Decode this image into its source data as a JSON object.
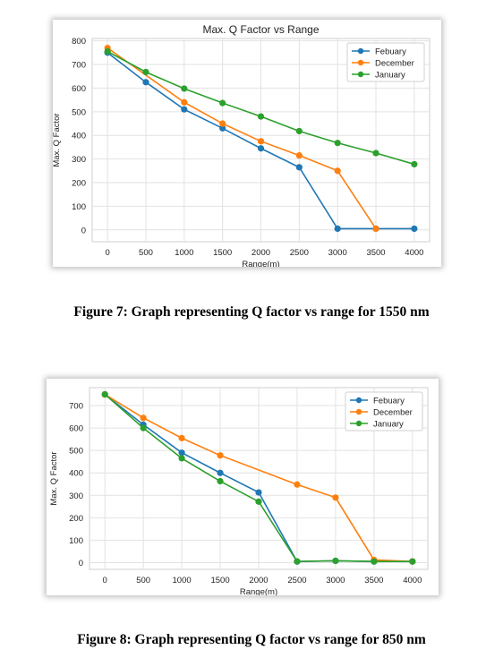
{
  "figures": [
    {
      "caption": "Figure 7: Graph representing Q factor vs range for 1550 nm",
      "chart_data": {
        "type": "line",
        "title": "Max. Q Factor vs Range",
        "xlabel": "Range(m)",
        "ylabel": "Max. Q Factor",
        "xlim": [
          -200,
          4200
        ],
        "ylim": [
          -50,
          810
        ],
        "xticks": [
          0,
          500,
          1000,
          1500,
          2000,
          2500,
          3000,
          3500,
          4000
        ],
        "yticks": [
          0,
          100,
          200,
          300,
          400,
          500,
          600,
          700,
          800
        ],
        "grid": true,
        "legend_position": "top-right",
        "series": [
          {
            "name": "Febuary",
            "color": "#1f77b4",
            "x": [
              0,
              500,
              1000,
              1500,
              2000,
              2500,
              3000,
              3500,
              4000
            ],
            "y": [
              750,
              625,
              510,
              430,
              345,
              265,
              5,
              5,
              5
            ]
          },
          {
            "name": "December",
            "color": "#ff7f0e",
            "x": [
              0,
              1000,
              1500,
              2000,
              2500,
              3000,
              3500
            ],
            "y": [
              770,
              540,
              450,
              375,
              315,
              250,
              5
            ]
          },
          {
            "name": "January",
            "color": "#2ca02c",
            "x": [
              0,
              500,
              1000,
              1500,
              2000,
              2500,
              3000,
              3500,
              4000
            ],
            "y": [
              755,
              668,
              598,
              537,
              480,
              418,
              368,
              325,
              278
            ]
          }
        ]
      }
    },
    {
      "caption": "Figure 8: Graph representing Q factor vs range for 850 nm",
      "chart_data": {
        "type": "line",
        "title": "",
        "xlabel": "Range(m)",
        "ylabel": "Max. Q Factor",
        "xlim": [
          -200,
          4200
        ],
        "ylim": [
          -30,
          780
        ],
        "xticks": [
          0,
          500,
          1000,
          1500,
          2000,
          2500,
          3000,
          3500,
          4000
        ],
        "yticks": [
          0,
          100,
          200,
          300,
          400,
          500,
          600,
          700
        ],
        "grid": true,
        "legend_position": "top-right",
        "series": [
          {
            "name": "Febuary",
            "color": "#1f77b4",
            "x": [
              0,
              500,
              1000,
              1500,
              2000,
              2500,
              3000,
              3500,
              4000
            ],
            "y": [
              750,
              615,
              490,
              400,
              313,
              5,
              8,
              5,
              5
            ]
          },
          {
            "name": "December",
            "color": "#ff7f0e",
            "x": [
              0,
              500,
              1000,
              1500,
              2500,
              3000,
              3500,
              4000
            ],
            "y": [
              750,
              645,
              555,
              478,
              348,
              290,
              12,
              5
            ]
          },
          {
            "name": "January",
            "color": "#2ca02c",
            "x": [
              0,
              500,
              1000,
              1500,
              2000,
              2500,
              3000,
              3500,
              4000
            ],
            "y": [
              750,
              600,
              465,
              363,
              272,
              5,
              8,
              5,
              5
            ]
          }
        ]
      }
    }
  ]
}
